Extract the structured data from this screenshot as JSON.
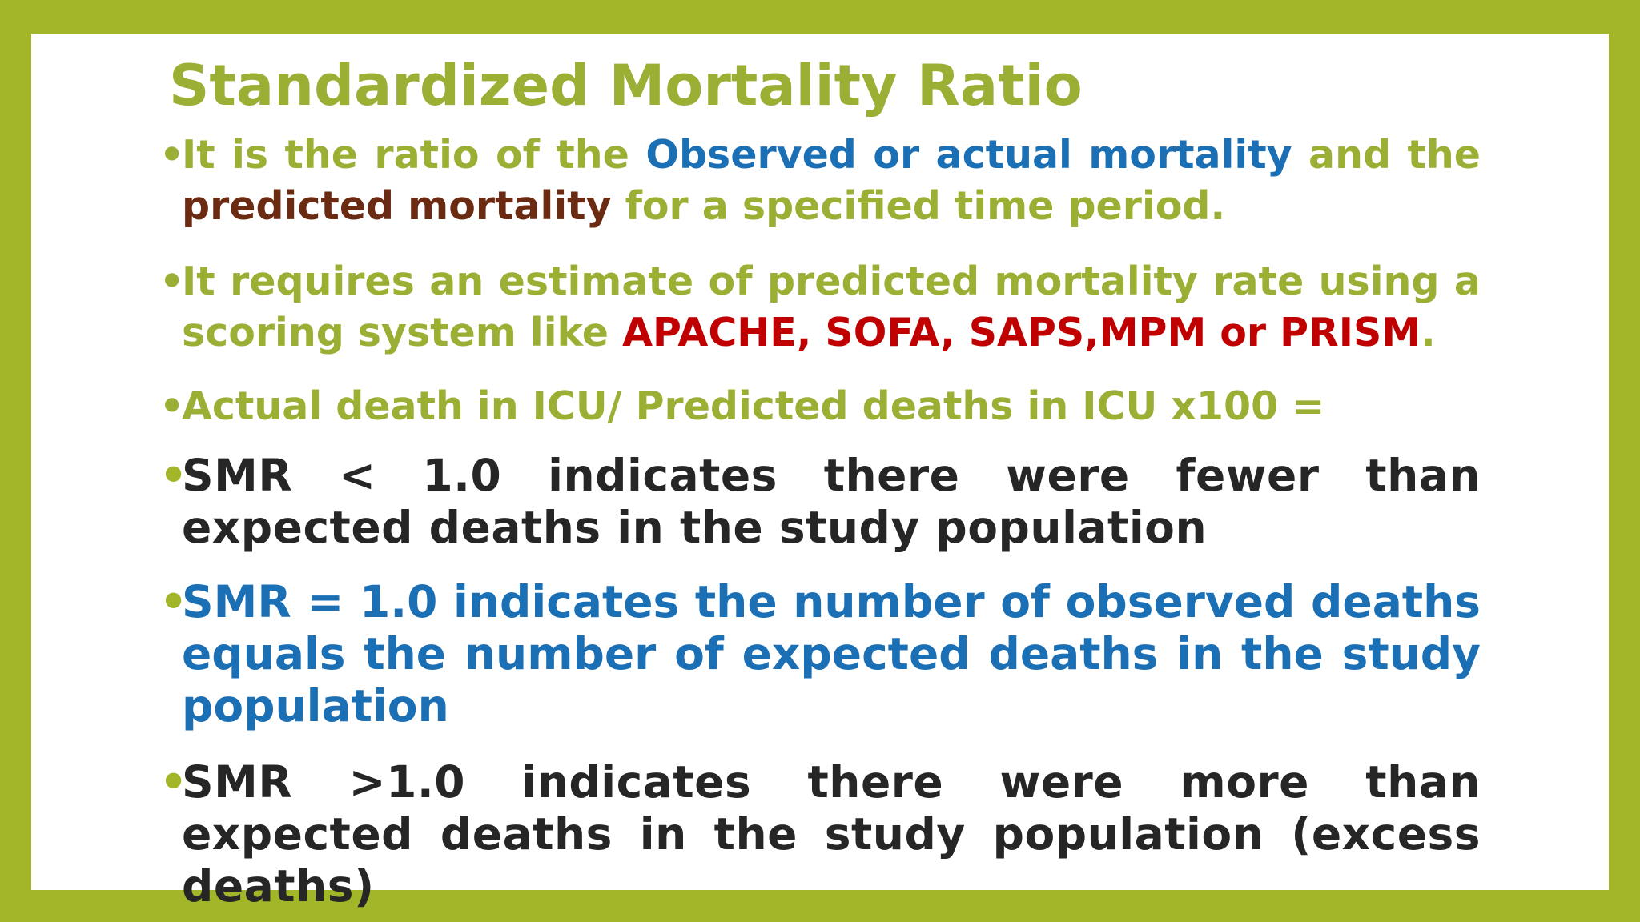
{
  "title": "Standardized Mortality Ratio",
  "colors": {
    "frame": "#a3b62a",
    "green_text": "#9aaf34",
    "blue_text": "#1a6fb5",
    "brown_text": "#6b2a12",
    "red_text": "#c00000",
    "dark_text": "#262626"
  },
  "bullet_glyph": "•",
  "bullets": [
    {
      "parts": [
        {
          "text": "It is the ratio of the ",
          "color": "#9aaf34"
        },
        {
          "text": "Observed or actual mortality",
          "color": "#1a6fb5"
        },
        {
          "text": " and the ",
          "color": "#9aaf34"
        },
        {
          "text": "predicted mortality",
          "color": "#6b2a12"
        },
        {
          "text": " for a specified time period.",
          "color": "#9aaf34"
        }
      ]
    },
    {
      "parts": [
        {
          "text": "It requires an estimate of predicted mortality rate using a scoring system like ",
          "color": "#9aaf34"
        },
        {
          "text": "APACHE, SOFA, SAPS,MPM or PRISM",
          "color": "#c00000"
        },
        {
          "text": ".",
          "color": "#9aaf34"
        }
      ]
    },
    {
      "parts": [
        {
          "text": "Actual death in ICU/ Predicted deaths in ICU x100 =",
          "color": "#9aaf34"
        }
      ]
    },
    {
      "parts": [
        {
          "text": "SMR < 1.0 indicates there were fewer than expected deaths in the study population",
          "color": "#262626"
        }
      ]
    },
    {
      "parts": [
        {
          "text": "SMR = 1.0 indicates the number of observed deaths equals the number of expected deaths in the study population",
          "color": "#1a6fb5"
        }
      ]
    },
    {
      "parts": [
        {
          "text": "SMR >1.0 indicates there were more than expected deaths in the study population (excess deaths)",
          "color": "#262626"
        }
      ]
    }
  ]
}
